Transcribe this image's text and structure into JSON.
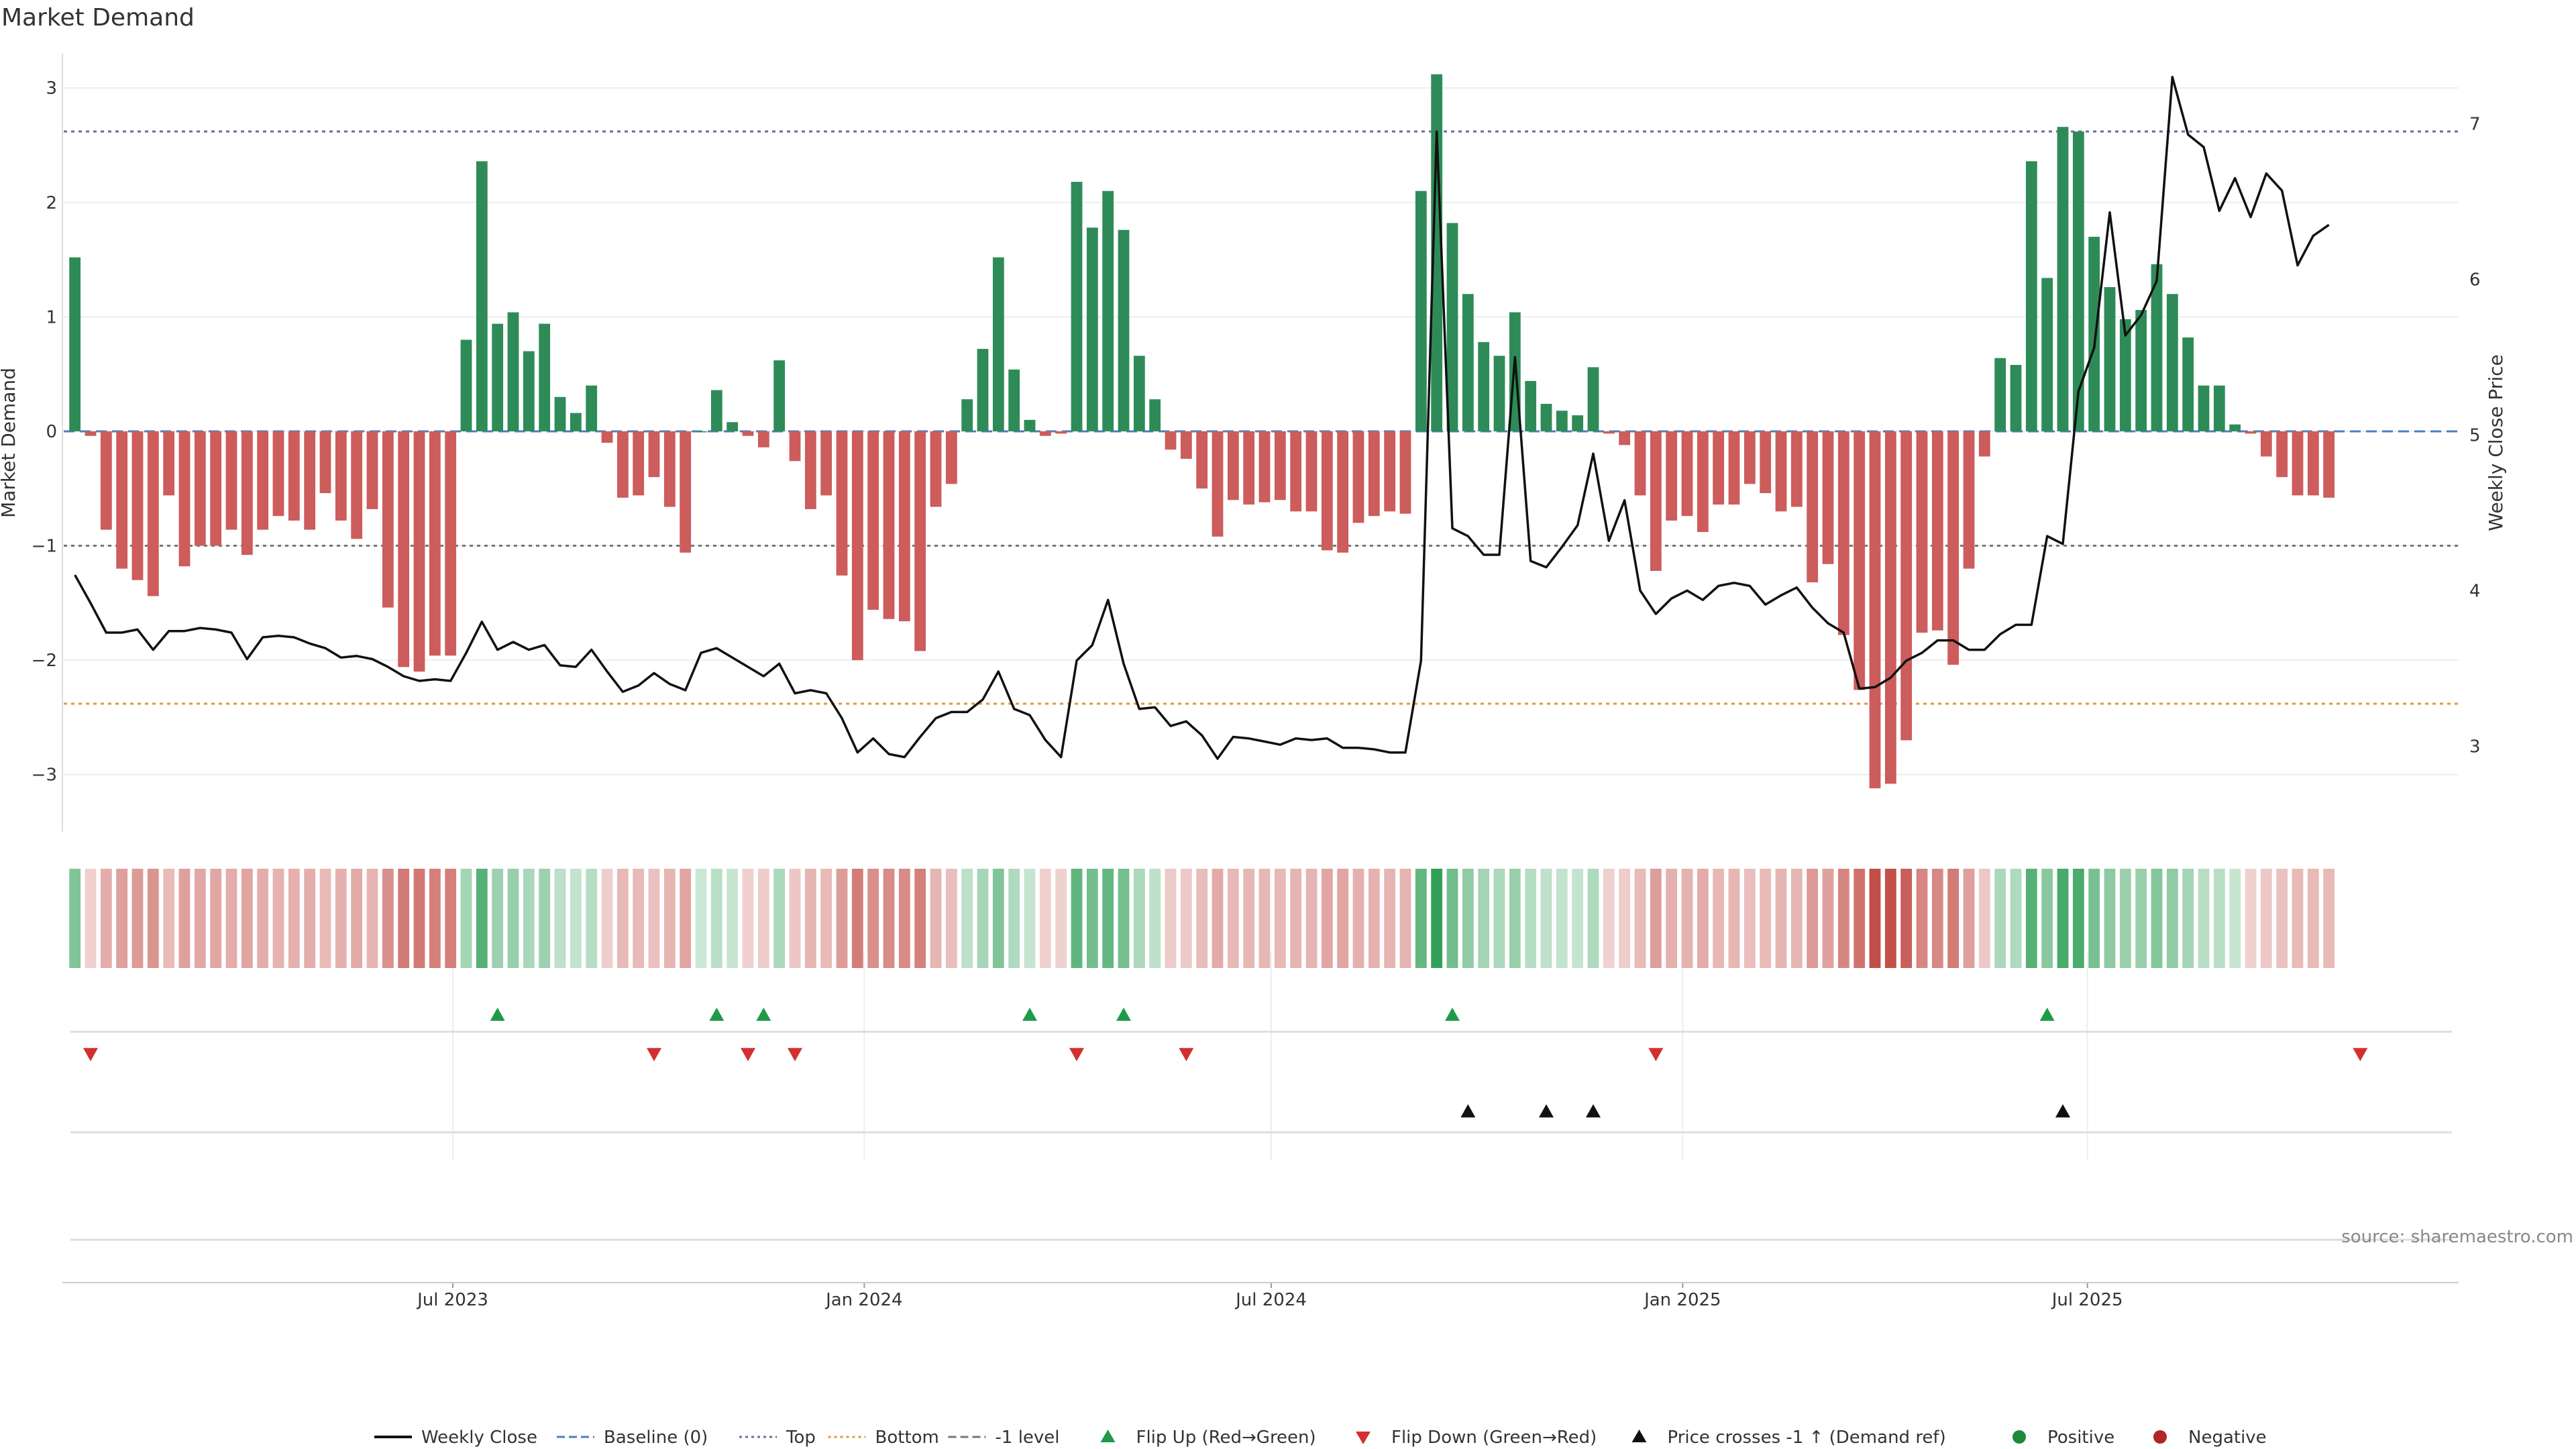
{
  "chart_data": {
    "type": "bar",
    "title": "Market Demand",
    "ylabel": "Market Demand",
    "y2label": "Weekly Close Price",
    "ylim": [
      -3.5,
      3.3
    ],
    "y2lim": [
      2.45,
      7.45
    ],
    "yticks": [
      -3,
      -2,
      -1,
      0,
      1,
      2,
      3
    ],
    "y2ticks": [
      3,
      4,
      5,
      6,
      7
    ],
    "xlim": [
      "2023-01-08",
      "2025-12-14"
    ],
    "xticks": [
      {
        "label": "Jul 2023",
        "date": "2023-07-01"
      },
      {
        "label": "Jan 2024",
        "date": "2024-01-01"
      },
      {
        "label": "Jul 2024",
        "date": "2024-07-01"
      },
      {
        "label": "Jan 2025",
        "date": "2025-01-01"
      },
      {
        "label": "Jul 2025",
        "date": "2025-07-01"
      }
    ],
    "start_date": "2023-01-13",
    "interval_days": 7,
    "reference_lines": [
      {
        "name": "Top",
        "value": 2.62,
        "color": "#6b6b99"
      },
      {
        "name": "Bottom",
        "value": -2.38,
        "color": "#e3973b"
      },
      {
        "name": "-1 level",
        "value": -1.0,
        "color": "#777777"
      },
      {
        "name": "Baseline (0)",
        "value": 0,
        "color": "#4b7fc1"
      }
    ],
    "demand": [
      1.52,
      -0.04,
      -0.86,
      -1.2,
      -1.3,
      -1.44,
      -0.56,
      -1.18,
      -1.0,
      -1.0,
      -0.86,
      -1.08,
      -0.86,
      -0.74,
      -0.78,
      -0.86,
      -0.54,
      -0.78,
      -0.94,
      -0.68,
      -1.54,
      -2.06,
      -2.1,
      -1.96,
      -1.96,
      0.8,
      2.36,
      0.94,
      1.04,
      0.7,
      0.94,
      0.3,
      0.16,
      0.4,
      -0.1,
      -0.58,
      -0.56,
      -0.4,
      -0.66,
      -1.06,
      0.0,
      0.36,
      0.08,
      -0.04,
      -0.14,
      0.62,
      -0.26,
      -0.68,
      -0.56,
      -1.26,
      -2.0,
      -1.56,
      -1.64,
      -1.66,
      -1.92,
      -0.66,
      -0.46,
      0.28,
      0.72,
      1.52,
      0.54,
      0.1,
      -0.04,
      -0.02,
      2.18,
      1.78,
      2.1,
      1.76,
      0.66,
      0.28,
      -0.16,
      -0.24,
      -0.5,
      -0.92,
      -0.6,
      -0.64,
      -0.62,
      -0.6,
      -0.7,
      -0.7,
      -1.04,
      -1.06,
      -0.8,
      -0.74,
      -0.7,
      -0.72,
      2.1,
      3.12,
      1.82,
      1.2,
      0.78,
      0.66,
      1.04,
      0.44,
      0.24,
      0.18,
      0.14,
      0.56,
      -0.02,
      -0.12,
      -0.56,
      -1.22,
      -0.78,
      -0.74,
      -0.88,
      -0.64,
      -0.64,
      -0.46,
      -0.54,
      -0.7,
      -0.66,
      -1.32,
      -1.16,
      -1.78,
      -2.26,
      -3.12,
      -3.08,
      -2.7,
      -1.76,
      -1.74,
      -2.04,
      -1.2,
      -0.22,
      0.64,
      0.58,
      2.36,
      1.34,
      2.66,
      2.62,
      1.7,
      1.26,
      0.98,
      1.06,
      1.46,
      1.2,
      0.82,
      0.4,
      0.4,
      0.06,
      -0.02,
      -0.22,
      -0.4,
      -0.56,
      -0.56,
      -0.58
    ],
    "close": [
      4.1,
      3.92,
      3.73,
      3.73,
      3.75,
      3.62,
      3.74,
      3.74,
      3.76,
      3.75,
      3.73,
      3.56,
      3.7,
      3.71,
      3.7,
      3.66,
      3.63,
      3.57,
      3.58,
      3.56,
      3.51,
      3.45,
      3.42,
      3.43,
      3.42,
      3.6,
      3.8,
      3.62,
      3.67,
      3.62,
      3.65,
      3.52,
      3.51,
      3.62,
      3.48,
      3.35,
      3.39,
      3.47,
      3.4,
      3.36,
      3.6,
      3.63,
      3.57,
      3.51,
      3.45,
      3.53,
      3.34,
      3.36,
      3.34,
      3.18,
      2.96,
      3.05,
      2.95,
      2.93,
      3.06,
      3.18,
      3.22,
      3.22,
      3.3,
      3.48,
      3.24,
      3.2,
      3.04,
      2.93,
      3.55,
      3.65,
      3.94,
      3.53,
      3.24,
      3.25,
      3.13,
      3.16,
      3.07,
      2.92,
      3.06,
      3.05,
      3.03,
      3.01,
      3.05,
      3.04,
      3.05,
      2.99,
      2.99,
      2.98,
      2.96,
      2.96,
      3.55,
      6.95,
      4.4,
      4.35,
      4.23,
      4.23,
      5.5,
      4.19,
      4.15,
      4.28,
      4.42,
      4.88,
      4.32,
      4.58,
      4.0,
      3.85,
      3.95,
      4.0,
      3.94,
      4.03,
      4.05,
      4.03,
      3.91,
      3.97,
      4.02,
      3.89,
      3.79,
      3.73,
      3.37,
      3.38,
      3.44,
      3.55,
      3.6,
      3.68,
      3.68,
      3.62,
      3.62,
      3.72,
      3.78,
      3.78,
      4.35,
      4.3,
      5.28,
      5.56,
      6.43,
      5.64,
      5.77,
      5.99,
      7.3,
      6.93,
      6.85,
      6.44,
      6.65,
      6.4,
      6.68,
      6.57,
      6.09,
      6.28,
      6.35
    ],
    "flip_up_dates": [
      "2023-07-21",
      "2023-10-27",
      "2023-11-17",
      "2024-03-15",
      "2024-04-26",
      "2024-09-20",
      "2025-06-13"
    ],
    "flip_down_dates": [
      "2023-01-20",
      "2023-09-29",
      "2023-11-10",
      "2023-12-01",
      "2024-04-05",
      "2024-05-24",
      "2024-12-20",
      "2025-10-31"
    ],
    "price_cross_dates": [
      "2024-09-27",
      "2024-11-01",
      "2024-11-22",
      "2025-06-20"
    ],
    "legend_position": "bottom",
    "legend": [
      {
        "label": "Weekly Close",
        "kind": "line",
        "color": "#111111"
      },
      {
        "label": "Baseline (0)",
        "kind": "dash",
        "color": "#4b7fc1"
      },
      {
        "label": "Top",
        "kind": "dot",
        "color": "#6b6b99"
      },
      {
        "label": "Bottom",
        "kind": "dot",
        "color": "#e3973b"
      },
      {
        "label": "-1 level",
        "kind": "dash",
        "color": "#777777"
      },
      {
        "label": "Flip Up (Red→Green)",
        "kind": "tri-up",
        "color": "#1f9a4a"
      },
      {
        "label": "Flip Down (Green→Red)",
        "kind": "tri-down",
        "color": "#d23030"
      },
      {
        "label": "Price crosses -1 ↑ (Demand ref)",
        "kind": "tri-up",
        "color": "#111111"
      },
      {
        "label": "Positive",
        "kind": "circle",
        "color": "#1f8a3a"
      },
      {
        "label": "Negative",
        "kind": "circle",
        "color": "#b02525"
      }
    ],
    "colors": {
      "positive_bar": "#2e8b57",
      "negative_bar": "#cd5c5c",
      "close_line": "#111111",
      "grid": "#eeeeee"
    }
  },
  "source": "source: sharemaestro.com"
}
